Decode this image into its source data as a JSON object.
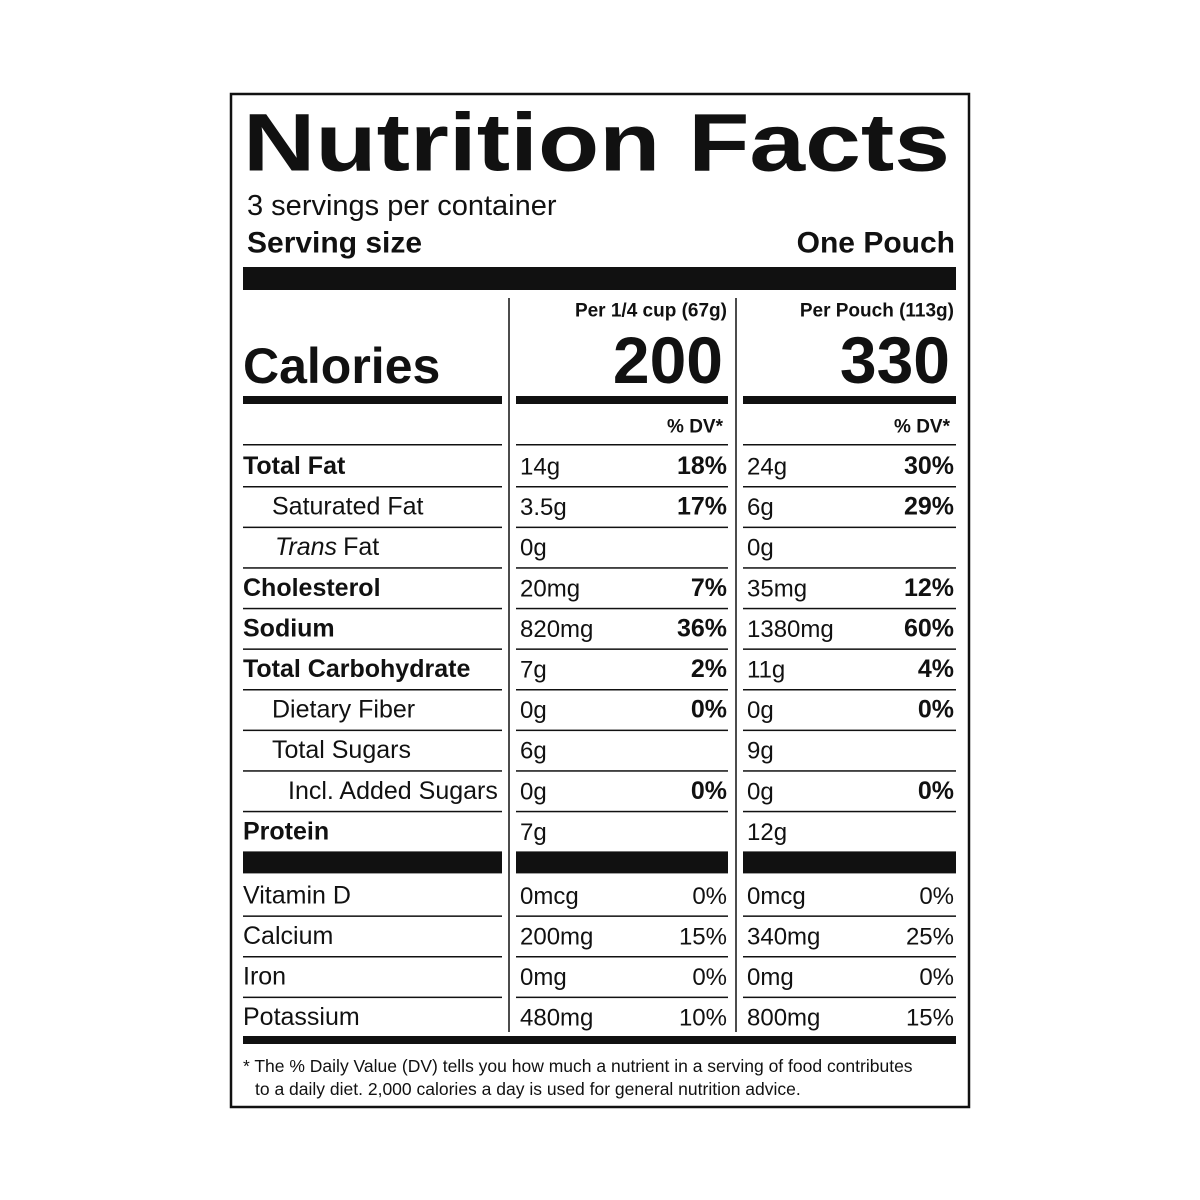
{
  "title": "Nutrition Facts",
  "servings": "3 servings per container",
  "serving_size_label": "Serving size",
  "serving_size_value": "One Pouch",
  "calories_label": "Calories",
  "columns": [
    {
      "header": "Per 1/4 cup (67g)",
      "calories": "200",
      "dv_header": "% DV*"
    },
    {
      "header": "Per Pouch (113g)",
      "calories": "330",
      "dv_header": "% DV*"
    }
  ],
  "nutrients": [
    {
      "name": "Total Fat",
      "bold": true,
      "indent": 0,
      "values": [
        [
          "14g",
          "18%"
        ],
        [
          "24g",
          "30%"
        ]
      ]
    },
    {
      "name": "Saturated Fat",
      "bold": false,
      "indent": 1,
      "values": [
        [
          "3.5g",
          "17%"
        ],
        [
          "6g",
          "29%"
        ]
      ]
    },
    {
      "name_italic": "Trans",
      "name": "Fat",
      "bold": false,
      "indent": 1,
      "values": [
        [
          "0g",
          null
        ],
        [
          "0g",
          null
        ]
      ]
    },
    {
      "name": "Cholesterol",
      "bold": true,
      "indent": 0,
      "values": [
        [
          "20mg",
          "7%"
        ],
        [
          "35mg",
          "12%"
        ]
      ]
    },
    {
      "name": "Sodium",
      "bold": true,
      "indent": 0,
      "values": [
        [
          "820mg",
          "36%"
        ],
        [
          "1380mg",
          "60%"
        ]
      ]
    },
    {
      "name": "Total Carbohydrate",
      "bold": true,
      "indent": 0,
      "values": [
        [
          "7g",
          "2%"
        ],
        [
          "11g",
          "4%"
        ]
      ]
    },
    {
      "name": "Dietary Fiber",
      "bold": false,
      "indent": 1,
      "values": [
        [
          "0g",
          "0%"
        ],
        [
          "0g",
          "0%"
        ]
      ]
    },
    {
      "name": "Total Sugars",
      "bold": false,
      "indent": 1,
      "values": [
        [
          "6g",
          null
        ],
        [
          "9g",
          null
        ]
      ]
    },
    {
      "name": "Incl. Added Sugars",
      "bold": false,
      "indent": 2,
      "values": [
        [
          "0g",
          "0%"
        ],
        [
          "0g",
          "0%"
        ]
      ]
    },
    {
      "name": "Protein",
      "bold": true,
      "indent": 0,
      "values": [
        [
          "7g",
          null
        ],
        [
          "12g",
          null
        ]
      ]
    }
  ],
  "vitamins": [
    {
      "name": "Vitamin D",
      "values": [
        [
          "0mcg",
          "0%"
        ],
        [
          "0mcg",
          "0%"
        ]
      ]
    },
    {
      "name": "Calcium",
      "values": [
        [
          "200mg",
          "15%"
        ],
        [
          "340mg",
          "25%"
        ]
      ]
    },
    {
      "name": "Iron",
      "values": [
        [
          "0mg",
          "0%"
        ],
        [
          "0mg",
          "0%"
        ]
      ]
    },
    {
      "name": "Potassium",
      "values": [
        [
          "480mg",
          "10%"
        ],
        [
          "800mg",
          "15%"
        ]
      ]
    }
  ],
  "footnote": [
    "* The % Daily Value (DV) tells you how much a nutrient in a serving of food contributes",
    "to a daily diet. 2,000 calories a day is used for general nutrition advice."
  ]
}
